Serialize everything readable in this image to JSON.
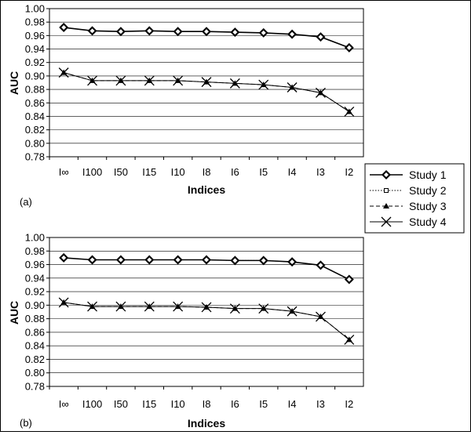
{
  "chart_data": [
    {
      "type": "line",
      "panel_label": "(a)",
      "xlabel": "Indices",
      "ylabel": "AUC",
      "categories": [
        "I∞",
        "I100",
        "I50",
        "I15",
        "I10",
        "I8",
        "I6",
        "I5",
        "I4",
        "I3",
        "I2"
      ],
      "ylim": [
        0.78,
        1.0
      ],
      "yticks": [
        "0.78",
        "0.80",
        "0.82",
        "0.84",
        "0.86",
        "0.88",
        "0.90",
        "0.92",
        "0.94",
        "0.96",
        "0.98",
        "1.00"
      ],
      "grid": true,
      "series": [
        {
          "name": "Study 1",
          "values": [
            0.972,
            0.967,
            0.966,
            0.967,
            0.966,
            0.966,
            0.965,
            0.964,
            0.962,
            0.958,
            0.942
          ]
        },
        {
          "name": "Study 2",
          "values": [
            0.972,
            0.967,
            0.966,
            0.967,
            0.966,
            0.966,
            0.965,
            0.964,
            0.962,
            0.958,
            0.942
          ]
        },
        {
          "name": "Study 3",
          "values": [
            0.905,
            0.893,
            0.893,
            0.893,
            0.893,
            0.891,
            0.889,
            0.887,
            0.883,
            0.875,
            0.847
          ]
        },
        {
          "name": "Study 4",
          "values": [
            0.905,
            0.893,
            0.893,
            0.893,
            0.893,
            0.891,
            0.889,
            0.887,
            0.883,
            0.875,
            0.847
          ]
        }
      ]
    },
    {
      "type": "line",
      "panel_label": "(b)",
      "xlabel": "Indices",
      "ylabel": "AUC",
      "categories": [
        "I∞",
        "I100",
        "I50",
        "I15",
        "I10",
        "I8",
        "I6",
        "I5",
        "I4",
        "I3",
        "I2"
      ],
      "ylim": [
        0.78,
        1.0
      ],
      "yticks": [
        "0.78",
        "0.80",
        "0.82",
        "0.84",
        "0.86",
        "0.88",
        "0.90",
        "0.92",
        "0.94",
        "0.96",
        "0.98",
        "1.00"
      ],
      "grid": true,
      "series": [
        {
          "name": "Study 1",
          "values": [
            0.97,
            0.967,
            0.967,
            0.967,
            0.967,
            0.967,
            0.966,
            0.966,
            0.964,
            0.959,
            0.938
          ]
        },
        {
          "name": "Study 2",
          "values": [
            0.97,
            0.967,
            0.967,
            0.967,
            0.967,
            0.967,
            0.966,
            0.966,
            0.964,
            0.959,
            0.938
          ]
        },
        {
          "name": "Study 3",
          "values": [
            0.904,
            0.898,
            0.898,
            0.898,
            0.898,
            0.897,
            0.895,
            0.895,
            0.891,
            0.883,
            0.849
          ]
        },
        {
          "name": "Study 4",
          "values": [
            0.904,
            0.898,
            0.898,
            0.898,
            0.898,
            0.897,
            0.895,
            0.895,
            0.891,
            0.883,
            0.849
          ]
        }
      ]
    }
  ],
  "legend": {
    "placement": "right",
    "items": [
      {
        "label": "Study 1",
        "marker": "filled-diamond",
        "line": "solid"
      },
      {
        "label": "Study 2",
        "marker": "open-square",
        "line": "dotted"
      },
      {
        "label": "Study 3",
        "marker": "filled-triangle",
        "line": "dashed"
      },
      {
        "label": "Study 4",
        "marker": "x-cross",
        "line": "solid"
      }
    ]
  }
}
